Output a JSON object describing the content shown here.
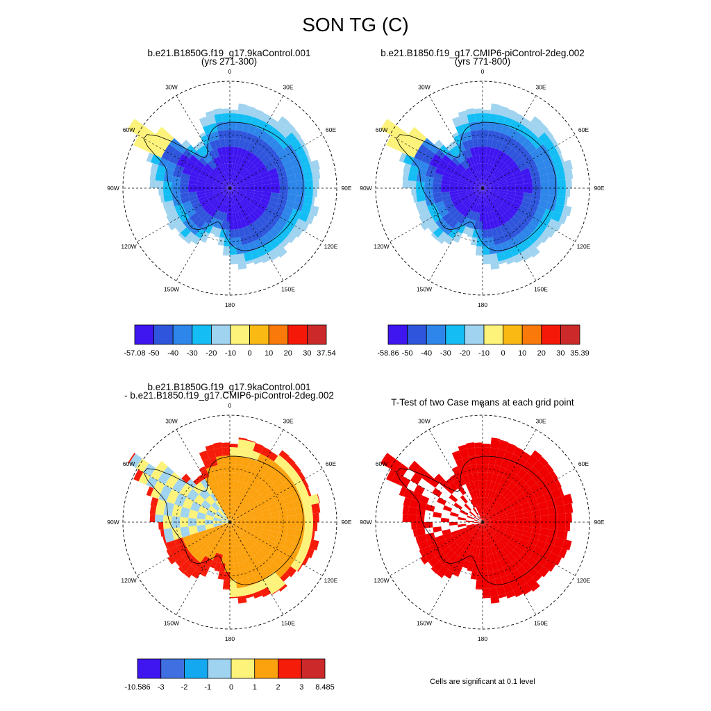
{
  "figure": {
    "title": "SON TG (C)"
  },
  "panels": [
    {
      "id": "case1",
      "title_lines": [
        "b.e21.B1850G.f19_g17.9kaControl.001",
        "(yrs 271-300)"
      ],
      "lon_labels": [
        "0",
        "30E",
        "60E",
        "90E",
        "120E",
        "150E",
        "180",
        "150W",
        "120W",
        "90W",
        "60W",
        "30W"
      ],
      "colorbar": {
        "colors": [
          "#3f15f0",
          "#2f55dc",
          "#2e86ea",
          "#14bef5",
          "#9fd3ef",
          "#fdf27a",
          "#fbb913",
          "#f97a0a",
          "#f51808",
          "#cc2a2a"
        ],
        "labels": [
          "-57.08",
          "-50",
          "-40",
          "-30",
          "-20",
          "-10",
          "0",
          "10",
          "20",
          "30",
          "37.54"
        ]
      }
    },
    {
      "id": "case2",
      "title_lines": [
        "b.e21.B1850.f19_g17.CMIP6-piControl-2deg.002",
        "(yrs 771-800)"
      ],
      "lon_labels": [
        "0",
        "30E",
        "60E",
        "90E",
        "120E",
        "150E",
        "180",
        "150W",
        "120W",
        "90W",
        "60W",
        "30W"
      ],
      "colorbar": {
        "colors": [
          "#3f15f0",
          "#2f55dc",
          "#2e86ea",
          "#14bef5",
          "#9fd3ef",
          "#fdf27a",
          "#fbb913",
          "#f97a0a",
          "#f51808",
          "#cc2a2a"
        ],
        "labels": [
          "-58.86",
          "-50",
          "-40",
          "-30",
          "-20",
          "-10",
          "0",
          "10",
          "20",
          "30",
          "35.39"
        ]
      }
    },
    {
      "id": "diff",
      "title_lines": [
        "b.e21.B1850G.f19_g17.9kaControl.001",
        "- b.e21.B1850.f19_g17.CMIP6-piControl-2deg.002"
      ],
      "lon_labels": [
        "0",
        "30E",
        "60E",
        "90E",
        "120E",
        "150E",
        "180",
        "150W",
        "120W",
        "90W",
        "60W",
        "30W"
      ],
      "colorbar": {
        "colors": [
          "#3f15f0",
          "#3f6fe0",
          "#14a8f0",
          "#9fd3ef",
          "#fdf27a",
          "#fca20f",
          "#f61c0a",
          "#cc2a2a"
        ],
        "labels": [
          "-10.586",
          "-3",
          "-2",
          "-1",
          "0",
          "1",
          "2",
          "3",
          "8.485"
        ]
      }
    },
    {
      "id": "ttest",
      "title_lines": [
        "T-Test of two Case means at each grid point"
      ],
      "lon_labels": [
        "0",
        "30E",
        "60E",
        "90E",
        "120E",
        "150E",
        "180",
        "150W",
        "120W",
        "90W",
        "60W",
        "30W"
      ],
      "note": "Cells are significant at 0.1 level",
      "sig_color": "#f00000"
    }
  ]
}
